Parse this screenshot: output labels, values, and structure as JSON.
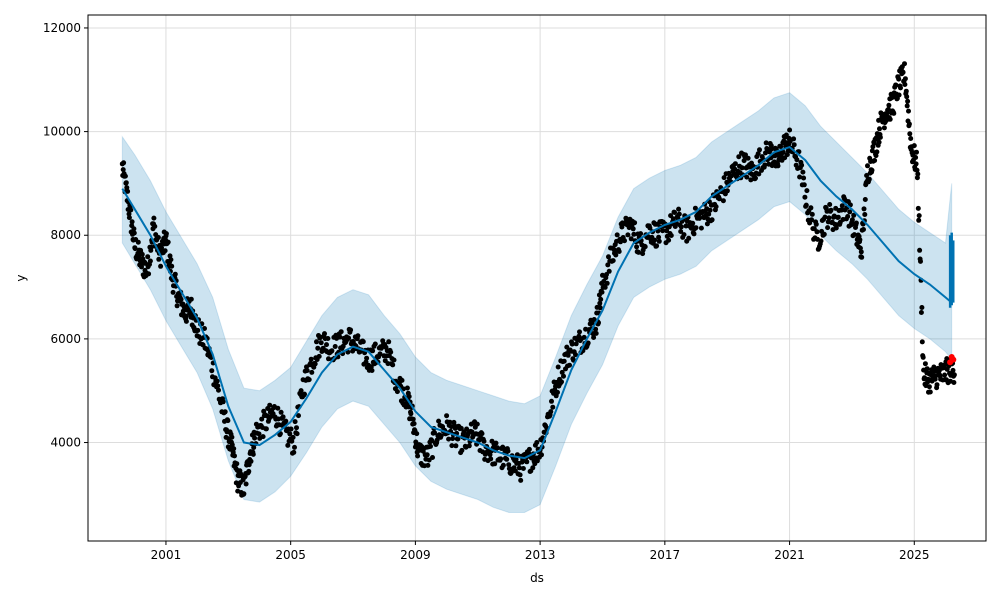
{
  "chart_data": {
    "type": "scatter",
    "title": "",
    "xlabel": "ds",
    "ylabel": "y",
    "xlim": [
      1998.5,
      2027.3
    ],
    "ylim": [
      2100,
      12250
    ],
    "x_ticks": [
      2001,
      2005,
      2009,
      2013,
      2017,
      2021,
      2025
    ],
    "y_ticks": [
      4000,
      6000,
      8000,
      10000,
      12000
    ],
    "grid": true,
    "legend": "none",
    "colors": {
      "observed": "#000000",
      "forecast_line": "#0072B2",
      "uncertainty_band": "#0072B2",
      "highlight": "#ff0000",
      "grid": "#dddddd"
    },
    "series": [
      {
        "role": "observed",
        "x": [
          1999.6,
          1999.8,
          2000.0,
          2000.2,
          2000.4,
          2000.6,
          2000.8,
          2001.0,
          2001.2,
          2001.4,
          2001.6,
          2001.8,
          2002.0,
          2002.3,
          2002.6,
          2002.9,
          2003.1,
          2003.3,
          2003.5,
          2003.7,
          2003.9,
          2004.2,
          2004.5,
          2004.8,
          2005.1,
          2005.4,
          2005.7,
          2006.0,
          2006.3,
          2006.6,
          2006.9,
          2007.2,
          2007.5,
          2007.8,
          2008.1,
          2008.4,
          2008.7,
          2008.9,
          2009.1,
          2009.4,
          2009.7,
          2010.0,
          2010.3,
          2010.6,
          2010.9,
          2011.2,
          2011.5,
          2011.8,
          2012.1,
          2012.4,
          2012.7,
          2013.0,
          2013.3,
          2013.6,
          2013.9,
          2014.2,
          2014.5,
          2014.8,
          2015.0,
          2015.3,
          2015.6,
          2015.9,
          2016.2,
          2016.5,
          2016.8,
          2017.1,
          2017.4,
          2017.7,
          2018.0,
          2018.3,
          2018.6,
          2018.9,
          2019.2,
          2019.5,
          2019.8,
          2020.1,
          2020.4,
          2020.6,
          2020.8,
          2021.0,
          2021.3,
          2021.6,
          2021.9,
          2022.2,
          2022.5,
          2022.8,
          2023.1,
          2023.3,
          2023.5,
          2023.7,
          2023.9,
          2024.1,
          2024.3,
          2024.5,
          2024.7,
          2024.9,
          2025.1,
          2025.3,
          2025.5,
          2025.7,
          2025.9,
          2026.1
        ],
        "y": [
          9300,
          8600,
          7800,
          7500,
          7300,
          8200,
          7600,
          7900,
          7200,
          6800,
          6500,
          6600,
          6200,
          5900,
          5200,
          4400,
          3900,
          3300,
          3100,
          3800,
          4200,
          4400,
          4600,
          4200,
          4000,
          5100,
          5600,
          6000,
          5800,
          5900,
          6000,
          5800,
          5600,
          5700,
          5800,
          5200,
          4900,
          4500,
          3800,
          3700,
          4200,
          4300,
          4100,
          4000,
          4200,
          3900,
          3800,
          3700,
          3600,
          3500,
          3700,
          3900,
          4600,
          5300,
          5700,
          5900,
          6100,
          6300,
          7000,
          7600,
          8000,
          8200,
          7800,
          8100,
          8000,
          8100,
          8300,
          8100,
          8300,
          8400,
          8600,
          8900,
          9200,
          9400,
          9200,
          9500,
          9600,
          9400,
          9700,
          9800,
          9400,
          8500,
          7900,
          8400,
          8300,
          8600,
          8100,
          7700,
          9200,
          9600,
          10100,
          10400,
          10500,
          10900,
          11100,
          9700,
          9300,
          5300,
          5200,
          5300,
          5300,
          5400
        ]
      },
      {
        "role": "forecast",
        "x": [
          1999.6,
          2000.0,
          2000.5,
          2001.0,
          2001.5,
          2002.0,
          2002.5,
          2003.0,
          2003.5,
          2004.0,
          2004.5,
          2005.0,
          2005.5,
          2006.0,
          2006.5,
          2007.0,
          2007.5,
          2008.0,
          2008.5,
          2009.0,
          2009.5,
          2010.0,
          2010.5,
          2011.0,
          2011.5,
          2012.0,
          2012.5,
          2013.0,
          2013.5,
          2014.0,
          2014.5,
          2015.0,
          2015.5,
          2016.0,
          2016.5,
          2017.0,
          2017.5,
          2018.0,
          2018.5,
          2019.0,
          2019.5,
          2020.0,
          2020.5,
          2021.0,
          2021.5,
          2022.0,
          2022.5,
          2023.0,
          2023.5,
          2024.0,
          2024.5,
          2025.0,
          2025.5,
          2026.0,
          2026.2
        ],
        "y": [
          8900,
          8500,
          8000,
          7400,
          6900,
          6400,
          5700,
          4700,
          4000,
          3950,
          4150,
          4400,
          4850,
          5350,
          5700,
          5850,
          5750,
          5400,
          5050,
          4600,
          4300,
          4200,
          4100,
          4000,
          3850,
          3750,
          3700,
          3850,
          4600,
          5400,
          6000,
          6550,
          7300,
          7850,
          8050,
          8200,
          8300,
          8450,
          8750,
          8950,
          9150,
          9350,
          9600,
          9700,
          9450,
          9050,
          8750,
          8500,
          8200,
          7850,
          7500,
          7250,
          7050,
          6800,
          6700
        ]
      },
      {
        "role": "uncertainty_upper",
        "x": [
          1999.6,
          2000.0,
          2000.5,
          2001.0,
          2001.5,
          2002.0,
          2002.5,
          2003.0,
          2003.5,
          2004.0,
          2004.5,
          2005.0,
          2005.5,
          2006.0,
          2006.5,
          2007.0,
          2007.5,
          2008.0,
          2008.5,
          2009.0,
          2009.5,
          2010.0,
          2010.5,
          2011.0,
          2011.5,
          2012.0,
          2012.5,
          2013.0,
          2013.5,
          2014.0,
          2014.5,
          2015.0,
          2015.5,
          2016.0,
          2016.5,
          2017.0,
          2017.5,
          2018.0,
          2018.5,
          2019.0,
          2019.5,
          2020.0,
          2020.5,
          2021.0,
          2021.5,
          2022.0,
          2022.5,
          2023.0,
          2023.5,
          2024.0,
          2024.5,
          2025.0,
          2025.5,
          2026.0,
          2026.2
        ],
        "y": [
          9900,
          9550,
          9050,
          8450,
          7950,
          7450,
          6800,
          5800,
          5050,
          5000,
          5200,
          5450,
          5950,
          6450,
          6800,
          6950,
          6850,
          6450,
          6100,
          5650,
          5350,
          5200,
          5100,
          5000,
          4900,
          4800,
          4750,
          4900,
          5650,
          6450,
          7050,
          7600,
          8350,
          8900,
          9100,
          9250,
          9350,
          9500,
          9800,
          10000,
          10200,
          10400,
          10650,
          10750,
          10500,
          10100,
          9800,
          9500,
          9200,
          8850,
          8500,
          8250,
          8050,
          7850,
          9000
        ]
      },
      {
        "role": "uncertainty_lower",
        "x": [
          1999.6,
          2000.0,
          2000.5,
          2001.0,
          2001.5,
          2002.0,
          2002.5,
          2003.0,
          2003.5,
          2004.0,
          2004.5,
          2005.0,
          2005.5,
          2006.0,
          2006.5,
          2007.0,
          2007.5,
          2008.0,
          2008.5,
          2009.0,
          2009.5,
          2010.0,
          2010.5,
          2011.0,
          2011.5,
          2012.0,
          2012.5,
          2013.0,
          2013.5,
          2014.0,
          2014.5,
          2015.0,
          2015.5,
          2016.0,
          2016.5,
          2017.0,
          2017.5,
          2018.0,
          2018.5,
          2019.0,
          2019.5,
          2020.0,
          2020.5,
          2021.0,
          2021.5,
          2022.0,
          2022.5,
          2023.0,
          2023.5,
          2024.0,
          2024.5,
          2025.0,
          2025.5,
          2026.0,
          2026.2
        ],
        "y": [
          7850,
          7450,
          6950,
          6350,
          5850,
          5350,
          4650,
          3650,
          2900,
          2850,
          3050,
          3350,
          3800,
          4300,
          4650,
          4800,
          4700,
          4350,
          4000,
          3550,
          3250,
          3100,
          3000,
          2900,
          2750,
          2650,
          2650,
          2800,
          3550,
          4350,
          4950,
          5500,
          6250,
          6800,
          7000,
          7150,
          7250,
          7400,
          7700,
          7900,
          8100,
          8300,
          8550,
          8650,
          8400,
          8000,
          7700,
          7450,
          7150,
          6800,
          6450,
          6200,
          6000,
          5750,
          5600
        ]
      },
      {
        "role": "forecast_spread",
        "x": [
          2026.15,
          2026.2,
          2026.25
        ],
        "y_low": [
          6600,
          6650,
          6700
        ],
        "y_high": [
          8000,
          8050,
          7900
        ]
      },
      {
        "role": "highlight",
        "x": [
          2026.15,
          2026.2,
          2026.25
        ],
        "y": [
          5550,
          5650,
          5600
        ]
      }
    ]
  }
}
